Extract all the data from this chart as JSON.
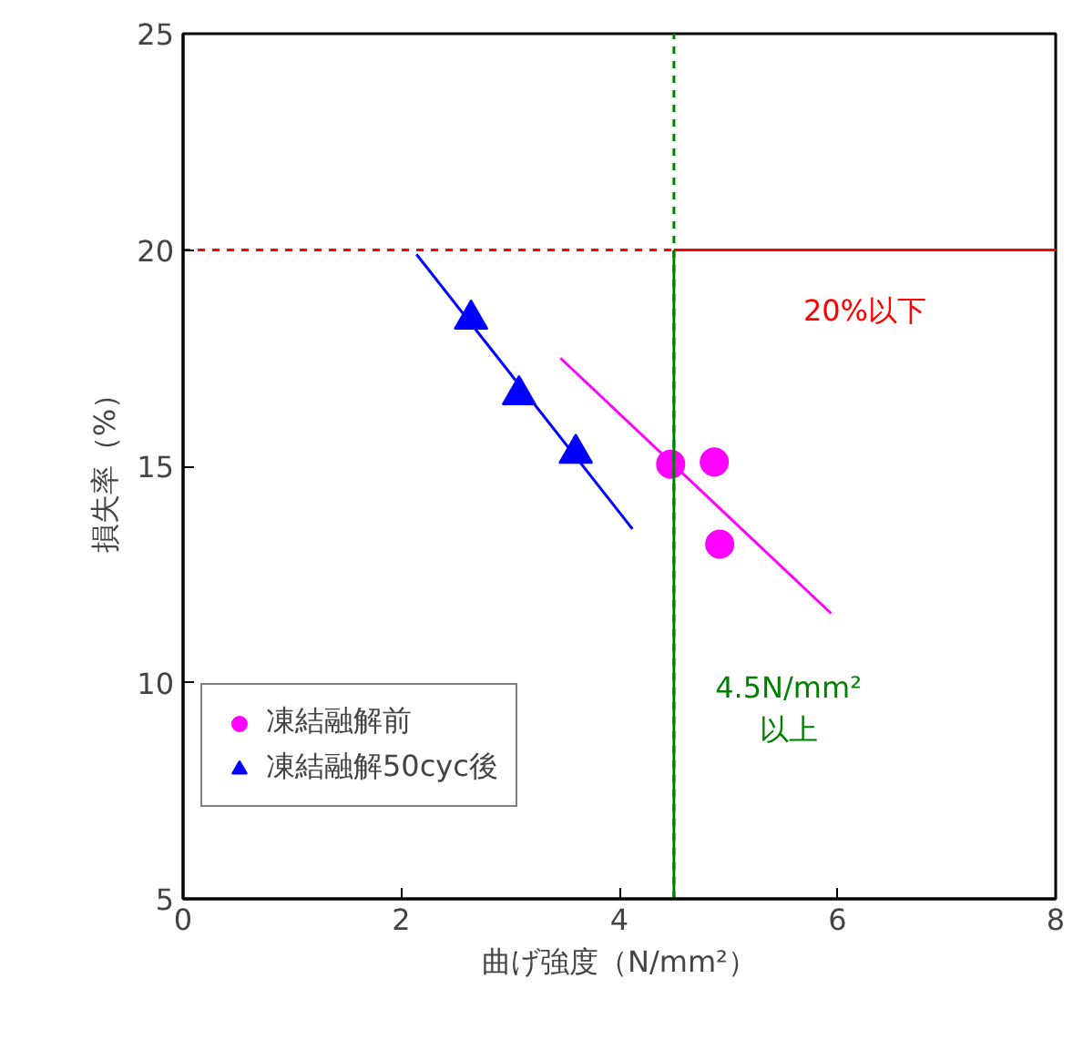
{
  "chart_data": {
    "type": "scatter",
    "xlabel": "曲げ強度（N/mm²）",
    "ylabel": "損失率（%）",
    "xlim": [
      0,
      8
    ],
    "ylim": [
      5,
      25
    ],
    "xticks": [
      0,
      2,
      4,
      6,
      8
    ],
    "yticks": [
      5,
      10,
      15,
      20,
      25
    ],
    "grid": false,
    "legend": "bottom left",
    "series": [
      {
        "name": "凍結融解前",
        "marker": "circle",
        "color": "#ff00ff",
        "x": [
          4.47,
          4.87,
          4.92
        ],
        "values": [
          15.05,
          15.1,
          13.2
        ]
      },
      {
        "name": "凍結融解50cyc後",
        "marker": "triangle",
        "color": "#0000ff",
        "x": [
          2.64,
          3.08,
          3.6
        ],
        "values": [
          18.4,
          16.65,
          15.3
        ]
      },
      {
        "type": "line",
        "color": "#ff00ff",
        "x": [
          3.46,
          5.94
        ],
        "values": [
          17.5,
          11.6
        ]
      },
      {
        "type": "line",
        "color": "#0000ff",
        "x": [
          2.14,
          4.12
        ],
        "values": [
          19.9,
          13.55
        ]
      },
      {
        "type": "line",
        "color": "#ff0000",
        "x": [
          4.5,
          8
        ],
        "values": [
          20,
          20
        ]
      },
      {
        "type": "line",
        "color": "#008000",
        "x": [
          4.5,
          4.5
        ],
        "values": [
          5,
          20
        ]
      }
    ],
    "ref_lines": [
      {
        "axis": "y",
        "value": 20,
        "label": "20%以下",
        "color": "#ff0000",
        "line_style": "dashed"
      },
      {
        "axis": "x",
        "value": 4.5,
        "label": "4.5N/mm²\n以上",
        "color": "#008000",
        "line_style": "dashed"
      }
    ]
  }
}
